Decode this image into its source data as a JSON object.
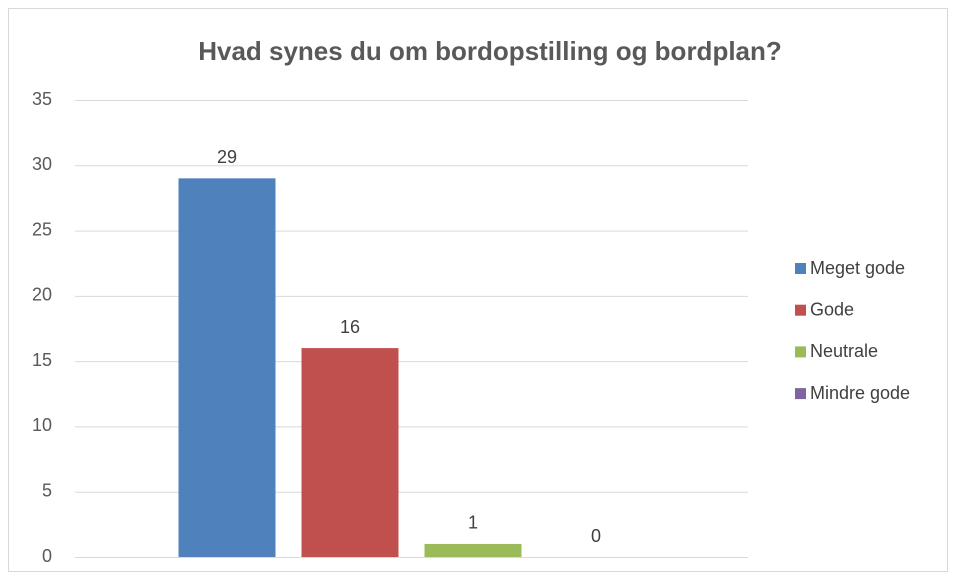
{
  "chart_data": {
    "type": "bar",
    "title": "Hvad synes du om bordopstilling og bordplan?",
    "categories": [
      null
    ],
    "series": [
      {
        "name": "Meget gode",
        "color": "#4f81bd",
        "values": [
          29
        ]
      },
      {
        "name": "Gode",
        "color": "#c0504d",
        "values": [
          16
        ]
      },
      {
        "name": "Neutrale",
        "color": "#9bbb59",
        "values": [
          1
        ]
      },
      {
        "name": "Mindre gode",
        "color": "#8064a2",
        "values": [
          0
        ]
      }
    ],
    "ylim": [
      0,
      35
    ],
    "yticks": [
      0,
      5,
      10,
      15,
      20,
      25,
      30,
      35
    ],
    "grid": true,
    "legend": "right",
    "data_labels": true
  }
}
